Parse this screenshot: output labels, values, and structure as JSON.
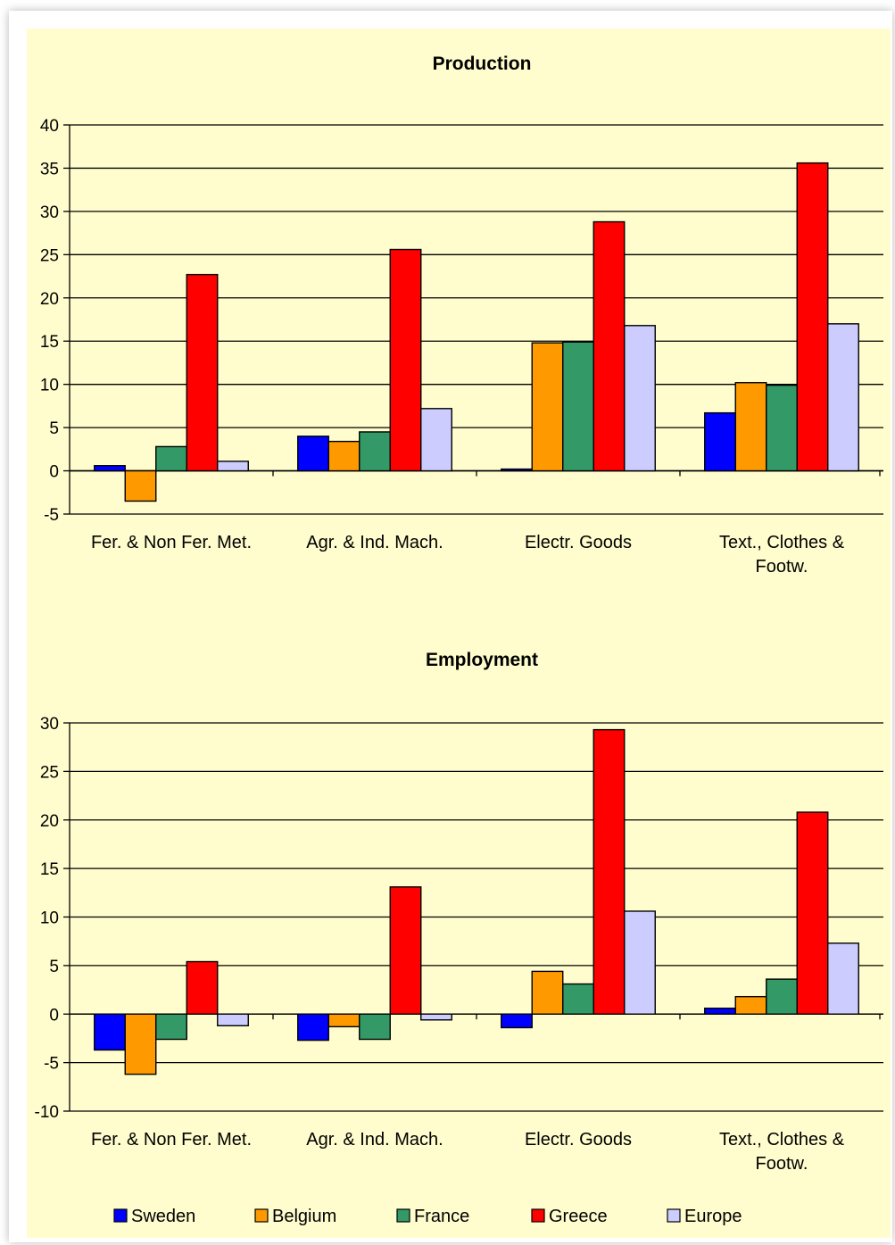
{
  "legend": [
    {
      "name": "Sweden",
      "color": "#0000ff"
    },
    {
      "name": "Belgium",
      "color": "#ff9900"
    },
    {
      "name": "France",
      "color": "#339966"
    },
    {
      "name": "Greece",
      "color": "#ff0000"
    },
    {
      "name": "Europe",
      "color": "#ccccff"
    }
  ],
  "chart_data": [
    {
      "type": "bar",
      "title": "Production",
      "categories": [
        [
          "Fer. & Non Fer. Met."
        ],
        [
          "Agr. & Ind. Mach."
        ],
        [
          "Electr. Goods"
        ],
        [
          "Text., Clothes &",
          "Footw."
        ]
      ],
      "ylim": [
        -5,
        40
      ],
      "yticks": [
        -5,
        0,
        5,
        10,
        15,
        20,
        25,
        30,
        35,
        40
      ],
      "grid": true,
      "series": [
        {
          "name": "Sweden",
          "values": [
            0.6,
            4.0,
            0.2,
            6.7
          ]
        },
        {
          "name": "Belgium",
          "values": [
            -3.5,
            3.4,
            14.8,
            10.2
          ]
        },
        {
          "name": "France",
          "values": [
            2.8,
            4.5,
            14.9,
            9.9
          ]
        },
        {
          "name": "Greece",
          "values": [
            22.7,
            25.6,
            28.8,
            35.6
          ]
        },
        {
          "name": "Europe",
          "values": [
            1.1,
            7.2,
            16.8,
            17.0
          ]
        }
      ]
    },
    {
      "type": "bar",
      "title": "Employment",
      "categories": [
        [
          "Fer. & Non Fer. Met."
        ],
        [
          "Agr. & Ind. Mach."
        ],
        [
          "Electr. Goods"
        ],
        [
          "Text., Clothes &",
          "Footw."
        ]
      ],
      "ylim": [
        -10,
        30
      ],
      "yticks": [
        -10,
        -5,
        0,
        5,
        10,
        15,
        20,
        25,
        30
      ],
      "grid": true,
      "series": [
        {
          "name": "Sweden",
          "values": [
            -3.7,
            -2.7,
            -1.4,
            0.6
          ]
        },
        {
          "name": "Belgium",
          "values": [
            -6.2,
            -1.3,
            4.4,
            1.8
          ]
        },
        {
          "name": "France",
          "values": [
            -2.6,
            -2.6,
            3.1,
            3.6
          ]
        },
        {
          "name": "Greece",
          "values": [
            5.4,
            13.1,
            29.3,
            20.8
          ]
        },
        {
          "name": "Europe",
          "values": [
            -1.2,
            -0.6,
            10.6,
            7.3
          ]
        }
      ]
    }
  ]
}
